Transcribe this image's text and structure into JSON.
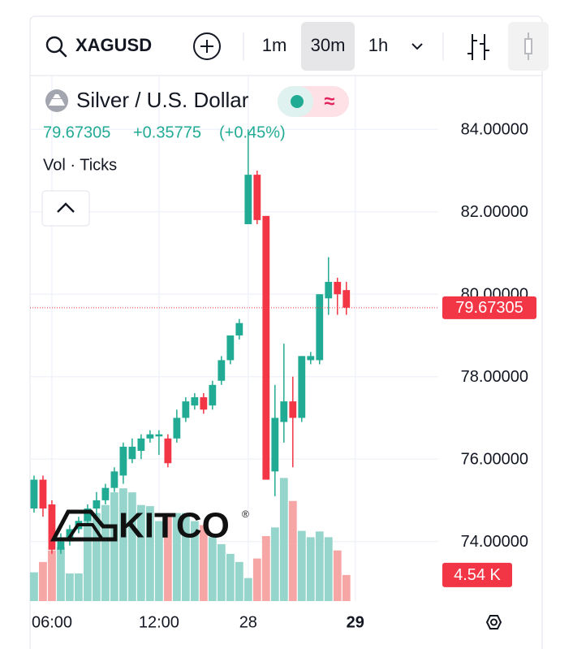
{
  "toolbar": {
    "symbol": "XAGUSD",
    "intervals": [
      "1m",
      "30m",
      "1h"
    ],
    "active_interval": 1
  },
  "legend": {
    "name": "Silver / U.S. Dollar",
    "change": "+0.35775",
    "change_pct": "(+0.45%)",
    "volume_label": "Vol · Ticks"
  },
  "watermark": {
    "text": "KITCO",
    "mark": "®"
  },
  "chart_data": {
    "type": "candlestick",
    "open": [
      74.8,
      75.5,
      74.9,
      73.8,
      74.0,
      74.3,
      74.5,
      74.8,
      75.0,
      75.3,
      75.6,
      76.0,
      76.2,
      76.5,
      76.55,
      76.5,
      76.5,
      77.0,
      77.3,
      77.5,
      77.3,
      77.9,
      78.4,
      79.0,
      81.7,
      82.9,
      81.9,
      75.7,
      76.9,
      77.4,
      77.0,
      78.4,
      78.4,
      79.9,
      80.3,
      80.1
    ],
    "high": [
      75.6,
      75.6,
      75.0,
      74.2,
      74.4,
      74.6,
      74.9,
      75.2,
      75.4,
      75.8,
      76.4,
      76.5,
      76.6,
      76.7,
      76.7,
      76.6,
      77.2,
      77.5,
      77.6,
      77.6,
      77.9,
      78.5,
      79.0,
      79.4,
      84.0,
      83.0,
      81.9,
      77.8,
      78.8,
      78.0,
      78.5,
      78.6,
      80.0,
      80.9,
      80.4,
      80.3
    ],
    "low": [
      74.7,
      74.6,
      73.7,
      73.7,
      73.9,
      74.2,
      74.4,
      74.6,
      74.9,
      75.2,
      75.4,
      75.9,
      76.0,
      76.4,
      76.1,
      75.8,
      76.4,
      76.9,
      77.2,
      77.1,
      77.2,
      77.8,
      78.3,
      78.9,
      81.7,
      81.7,
      75.5,
      75.1,
      76.4,
      75.8,
      76.9,
      78.3,
      78.3,
      79.5,
      79.5,
      79.5
    ],
    "close": [
      75.5,
      74.8,
      73.8,
      74.0,
      74.3,
      74.5,
      74.8,
      75.0,
      75.3,
      75.7,
      76.3,
      76.3,
      76.5,
      76.6,
      76.6,
      75.9,
      77.0,
      77.4,
      77.5,
      77.2,
      77.8,
      78.4,
      79.0,
      79.3,
      82.9,
      81.8,
      75.5,
      77.0,
      77.4,
      77.0,
      78.5,
      78.5,
      80.0,
      80.3,
      80.0,
      79.67305
    ],
    "volume": [
      5.0,
      6.8,
      8.8,
      9.4,
      4.8,
      4.8,
      15.3,
      15.3,
      16.7,
      18.9,
      19.6,
      18.9,
      16.7,
      16.5,
      13.9,
      15.3,
      15.3,
      15.3,
      13.9,
      13.2,
      11.1,
      9.9,
      8.2,
      6.8,
      4.0,
      7.4,
      11.3,
      12.8,
      21.4,
      17.4,
      12.2,
      11.1,
      12.1,
      11.1,
      8.8,
      4.54
    ],
    "last_volume_label": "4.54 K",
    "last_price": 79.67305,
    "ylim": [
      72.554,
      85.287
    ],
    "yticks": [
      {
        "value": 74,
        "label": "74.00000"
      },
      {
        "value": 76,
        "label": "76.00000"
      },
      {
        "value": 78,
        "label": "78.00000"
      },
      {
        "value": 80,
        "label": "80.00000"
      },
      {
        "value": 82,
        "label": "82.00000"
      },
      {
        "value": 84,
        "label": "84.00000"
      }
    ],
    "volume_lim": [
      0,
      91.2
    ],
    "xlim": [
      -0.45,
      45.3
    ],
    "xticks": [
      {
        "value": 2,
        "label": "06:00"
      },
      {
        "value": 14,
        "label": "12:00"
      },
      {
        "value": 24,
        "label": "28"
      },
      {
        "value": 36,
        "label": "29"
      }
    ],
    "grid": true,
    "up_color": "#22ab94",
    "down_color": "#f23645",
    "volume_up_color": "#95d5cc",
    "volume_down_color": "#f6a6a4"
  }
}
